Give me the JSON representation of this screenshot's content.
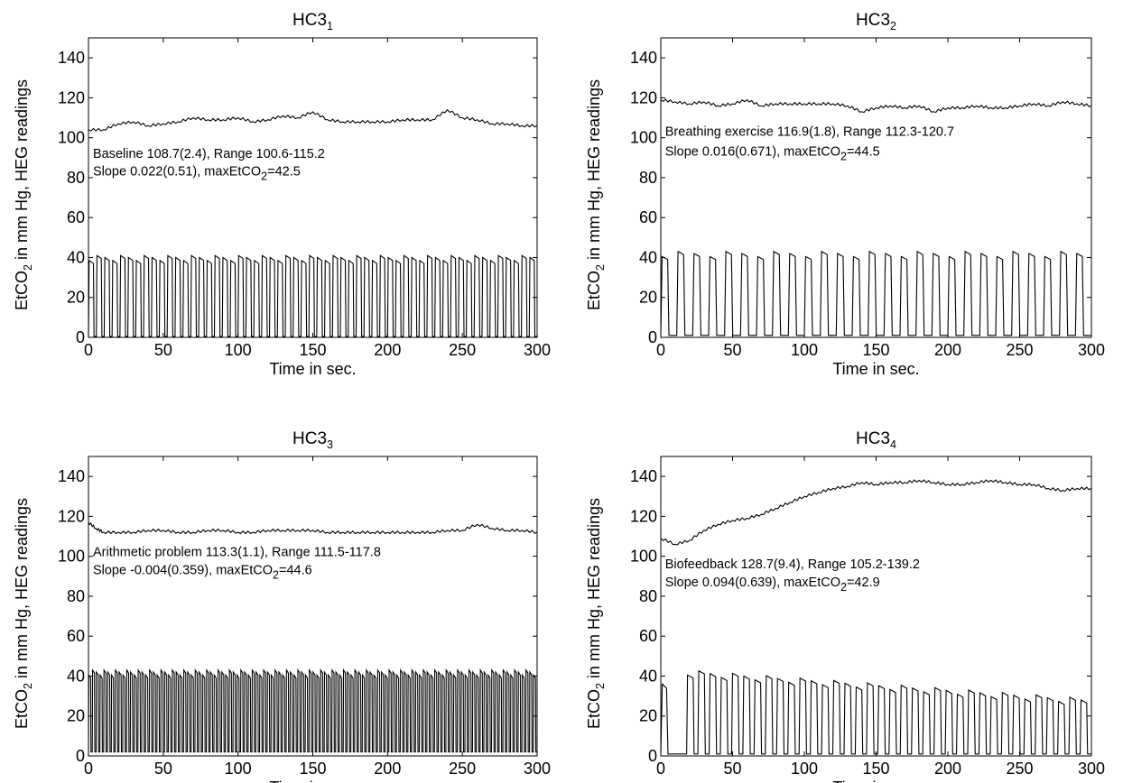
{
  "chart_data": [
    {
      "type": "line",
      "title": "HC3",
      "title_subscript": "1",
      "xlabel": "Time in sec.",
      "ylabel_parts": [
        "EtCO",
        "2",
        " in mm Hg,   HEG readings"
      ],
      "xlim": [
        0,
        300
      ],
      "ylim": [
        0,
        150
      ],
      "xticks": [
        "0",
        "50",
        "100",
        "150",
        "200",
        "250",
        "300"
      ],
      "yticks": [
        "0",
        "20",
        "40",
        "60",
        "80",
        "100",
        "120",
        "140"
      ],
      "grid": false,
      "annotations": [
        {
          "x": 3,
          "y": 90,
          "parts": [
            "Baseline 108.7(2.4), Range 100.6-115.2"
          ]
        },
        {
          "x": 3,
          "y": 81,
          "parts": [
            "Slope 0.022(0.51), maxEtCO",
            "2",
            "=42.5"
          ]
        }
      ],
      "series": [
        {
          "role": "HEG",
          "x": [
            0,
            10,
            20,
            30,
            40,
            50,
            60,
            70,
            80,
            90,
            100,
            110,
            120,
            130,
            140,
            150,
            160,
            170,
            180,
            190,
            200,
            210,
            220,
            230,
            240,
            250,
            260,
            270,
            280,
            290,
            300
          ],
          "y": [
            104,
            104,
            107,
            108,
            106,
            107,
            108,
            110,
            109,
            109,
            110,
            108,
            109,
            111,
            110,
            113,
            109,
            108,
            108,
            108,
            108,
            109,
            109,
            109,
            114,
            110,
            109,
            107,
            107,
            106,
            106
          ]
        },
        {
          "role": "EtCO2",
          "x_range": [
            0,
            300
          ],
          "cycles": 57,
          "peak": 40,
          "trough": 0.5,
          "duty": 0.55
        }
      ]
    },
    {
      "type": "line",
      "title": "HC3",
      "title_subscript": "2",
      "xlabel": "Time in sec.",
      "ylabel_parts": [
        "EtCO",
        "2",
        " in mm Hg,   HEG readings"
      ],
      "xlim": [
        0,
        300
      ],
      "ylim": [
        0,
        150
      ],
      "xticks": [
        "0",
        "50",
        "100",
        "150",
        "200",
        "250",
        "300"
      ],
      "yticks": [
        "0",
        "20",
        "40",
        "60",
        "80",
        "100",
        "120",
        "140"
      ],
      "grid": false,
      "annotations": [
        {
          "x": 3,
          "y": 101,
          "parts": [
            "Breathing exercise 116.9(1.8), Range 112.3-120.7"
          ]
        },
        {
          "x": 3,
          "y": 91,
          "parts": [
            "Slope 0.016(0.671), maxEtCO",
            "2",
            "=44.5"
          ]
        }
      ],
      "series": [
        {
          "role": "HEG",
          "x": [
            0,
            10,
            20,
            30,
            40,
            50,
            60,
            70,
            80,
            90,
            100,
            110,
            120,
            130,
            140,
            150,
            160,
            170,
            180,
            190,
            200,
            210,
            220,
            230,
            240,
            250,
            260,
            270,
            280,
            290,
            300
          ],
          "y": [
            119,
            118,
            117,
            118,
            116,
            117,
            119,
            116,
            117,
            117,
            117,
            117,
            117,
            116,
            113,
            115,
            116,
            115,
            116,
            113,
            115,
            115,
            116,
            115,
            115,
            116,
            117,
            116,
            118,
            117,
            116
          ]
        },
        {
          "role": "EtCO2",
          "x_range": [
            0,
            300
          ],
          "cycles": 27,
          "peak": 42,
          "trough": 1,
          "duty": 0.35
        }
      ]
    },
    {
      "type": "line",
      "title": "HC3",
      "title_subscript": "3",
      "xlabel": "Time in sec.",
      "ylabel_parts": [
        "EtCO",
        "2",
        " in mm Hg,   HEG readings"
      ],
      "xlim": [
        0,
        300
      ],
      "ylim": [
        0,
        150
      ],
      "xticks": [
        "0",
        "50",
        "100",
        "150",
        "200",
        "250",
        "300"
      ],
      "yticks": [
        "0",
        "20",
        "40",
        "60",
        "80",
        "100",
        "120",
        "140"
      ],
      "grid": false,
      "annotations": [
        {
          "x": 3,
          "y": 100,
          "parts": [
            "Arithmetic problem 113.3(1.1), Range 111.5-117.8"
          ]
        },
        {
          "x": 3,
          "y": 91,
          "parts": [
            "Slope -0.004(0.359), maxEtCO",
            "2",
            "=44.6"
          ]
        }
      ],
      "series": [
        {
          "role": "HEG",
          "x": [
            0,
            5,
            10,
            20,
            30,
            40,
            50,
            60,
            70,
            80,
            90,
            100,
            110,
            120,
            130,
            140,
            150,
            160,
            170,
            180,
            190,
            200,
            210,
            220,
            230,
            240,
            250,
            260,
            270,
            280,
            290,
            300
          ],
          "y": [
            117,
            114,
            112,
            112,
            112,
            113,
            113,
            112,
            112,
            113,
            113,
            112,
            112,
            113,
            113,
            113,
            113,
            112,
            112,
            112,
            112,
            112,
            112,
            112,
            112,
            113,
            113,
            116,
            114,
            113,
            113,
            112
          ]
        },
        {
          "role": "EtCO2",
          "x_range": [
            0,
            300
          ],
          "cycles": 118,
          "peak": 42,
          "trough": 2,
          "duty": 0.5
        }
      ]
    },
    {
      "type": "line",
      "title": "HC3",
      "title_subscript": "4",
      "xlabel": "Time in sec.",
      "ylabel_parts": [
        "EtCO",
        "2",
        " in mm Hg,   HEG readings"
      ],
      "xlim": [
        0,
        300
      ],
      "ylim": [
        0,
        150
      ],
      "xticks": [
        "0",
        "50",
        "100",
        "150",
        "200",
        "250",
        "300"
      ],
      "yticks": [
        "0",
        "20",
        "40",
        "60",
        "80",
        "100",
        "120",
        "140"
      ],
      "grid": false,
      "annotations": [
        {
          "x": 3,
          "y": 94,
          "parts": [
            "Biofeedback 128.7(9.4), Range 105.2-139.2"
          ]
        },
        {
          "x": 3,
          "y": 85,
          "parts": [
            "Slope 0.094(0.639), maxEtCO",
            "2",
            "=42.9"
          ]
        }
      ],
      "series": [
        {
          "role": "HEG",
          "x": [
            0,
            10,
            20,
            30,
            40,
            50,
            60,
            70,
            80,
            90,
            100,
            110,
            120,
            130,
            140,
            150,
            160,
            170,
            180,
            190,
            200,
            210,
            220,
            230,
            240,
            250,
            260,
            270,
            280,
            290,
            300
          ],
          "y": [
            109,
            106,
            108,
            113,
            116,
            118,
            119,
            121,
            124,
            127,
            130,
            132,
            134,
            135,
            137,
            136,
            137,
            137,
            138,
            137,
            136,
            136,
            137,
            138,
            137,
            136,
            136,
            134,
            133,
            134,
            134
          ]
        },
        {
          "role": "EtCO2",
          "x_range": [
            0,
            300
          ],
          "cycles": 36,
          "peak": 34,
          "trough": 1,
          "duty": 0.5,
          "peak_start": 42,
          "peak_end": 28,
          "start_x": 18
        }
      ]
    }
  ]
}
